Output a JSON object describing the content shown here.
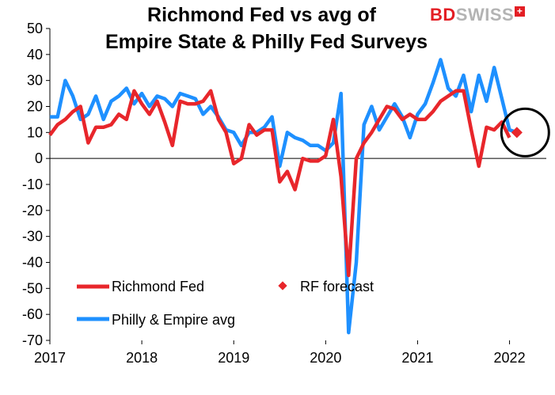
{
  "chart_data": {
    "type": "line",
    "title_line1": "Richmond Fed vs avg of",
    "title_line2": "Empire State & Philly Fed Surveys",
    "logo": {
      "bd": "BD",
      "swiss": "SWISS",
      "mark": "+"
    },
    "ylim": [
      -70,
      50
    ],
    "y_ticks": [
      50,
      40,
      30,
      20,
      10,
      0,
      -10,
      -20,
      -30,
      -40,
      -50,
      -60,
      -70
    ],
    "x_ticks": [
      "2017",
      "2018",
      "2019",
      "2020",
      "2021",
      "2022"
    ],
    "x_tick_values": [
      2017,
      2018,
      2019,
      2020,
      2021,
      2022
    ],
    "xlim": [
      2017.0,
      2022.4
    ],
    "colors": {
      "richmond": "#e8262b",
      "philly": "#1e90ff",
      "forecast": "#e8262b",
      "circle": "#000000"
    },
    "legend": {
      "richmond": "Richmond Fed",
      "forecast": "RF forecast",
      "philly": "Philly & Empire avg"
    },
    "series": [
      {
        "name": "Richmond Fed",
        "start": 2017.0,
        "step": 0.08333,
        "values": [
          9,
          13,
          15,
          18,
          20,
          6,
          12,
          12,
          13,
          17,
          15,
          26,
          21,
          17,
          22,
          14,
          5,
          22,
          21,
          21,
          22,
          26,
          15,
          10,
          -2,
          0,
          13,
          9,
          11,
          11,
          -9,
          -5,
          -12,
          0,
          -1,
          -1,
          1,
          15,
          -7,
          -45,
          0,
          6,
          10,
          15,
          20,
          19,
          15,
          17,
          15,
          15,
          18,
          22,
          24,
          26,
          26,
          11,
          -3,
          12,
          11,
          14,
          8
        ]
      },
      {
        "name": "Philly & Empire avg",
        "start": 2017.0,
        "step": 0.08333,
        "values": [
          16,
          16,
          30,
          24,
          15,
          17,
          24,
          15,
          22,
          24,
          27,
          21,
          25,
          20,
          24,
          23,
          20,
          25,
          24,
          23,
          17,
          20,
          16,
          11,
          10,
          5,
          10,
          10,
          12,
          16,
          -3,
          10,
          8,
          7,
          5,
          5,
          3,
          6,
          25,
          -67,
          -40,
          13,
          20,
          11,
          16,
          21,
          16,
          8,
          17,
          21,
          29,
          38,
          27,
          24,
          32,
          18,
          32,
          22,
          35,
          23,
          11,
          10
        ]
      },
      {
        "name": "RF forecast",
        "x": [
          2022.08
        ],
        "values": [
          10
        ]
      }
    ],
    "highlight_circle": {
      "x": 2022.17,
      "y": 10
    }
  }
}
